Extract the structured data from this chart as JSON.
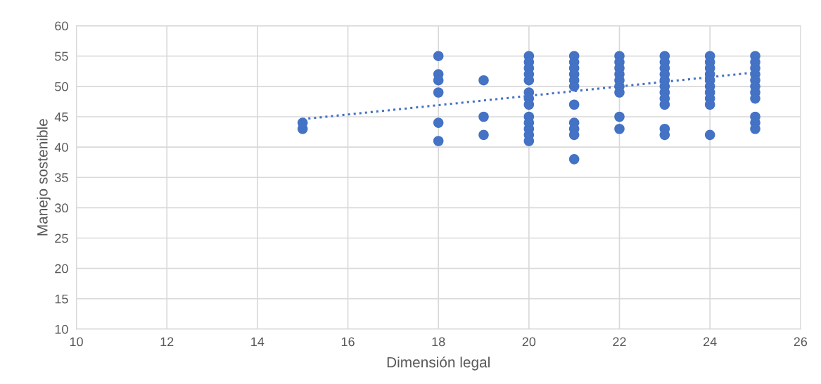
{
  "chart_data": {
    "type": "scatter",
    "xlabel": "Dimensión legal",
    "ylabel": "Manejo sostenible",
    "xlim": [
      10,
      26
    ],
    "xticks": [
      10,
      12,
      14,
      16,
      18,
      20,
      22,
      24,
      26
    ],
    "ylim": [
      10,
      60
    ],
    "yticks": [
      10,
      15,
      20,
      25,
      30,
      35,
      40,
      45,
      50,
      55,
      60
    ],
    "grid": true,
    "series": [
      {
        "color": "#4472c4",
        "marker": "circle",
        "x": [
          15,
          15,
          18,
          18,
          18,
          18,
          18,
          18,
          19,
          19,
          19,
          20,
          20,
          20,
          20,
          20,
          20,
          20,
          20,
          20,
          20,
          20,
          20,
          20,
          21,
          21,
          21,
          21,
          21,
          21,
          21,
          21,
          21,
          21,
          21,
          22,
          22,
          22,
          22,
          22,
          22,
          22,
          22,
          22,
          23,
          23,
          23,
          23,
          23,
          23,
          23,
          23,
          23,
          23,
          23,
          24,
          24,
          24,
          24,
          24,
          24,
          24,
          24,
          24,
          24,
          25,
          25,
          25,
          25,
          25,
          25,
          25,
          25,
          25,
          25,
          25
        ],
        "values": [
          43,
          44,
          55,
          52,
          51,
          49,
          44,
          41,
          51,
          45,
          42,
          55,
          54,
          53,
          52,
          51,
          49,
          48,
          47,
          45,
          44,
          43,
          42,
          41,
          55,
          54,
          53,
          52,
          51,
          50,
          47,
          44,
          43,
          42,
          38,
          55,
          54,
          53,
          52,
          51,
          50,
          49,
          45,
          43,
          55,
          54,
          53,
          52,
          51,
          50,
          49,
          48,
          47,
          43,
          42,
          55,
          54,
          53,
          52,
          51,
          50,
          49,
          48,
          47,
          42,
          55,
          54,
          53,
          52,
          51,
          50,
          49,
          48,
          45,
          44,
          43
        ]
      },
      {
        "type": "line",
        "color": "#4472c4",
        "line_style": "dotted",
        "x": [
          15,
          25
        ],
        "values": [
          44.6,
          52.3
        ]
      }
    ]
  }
}
